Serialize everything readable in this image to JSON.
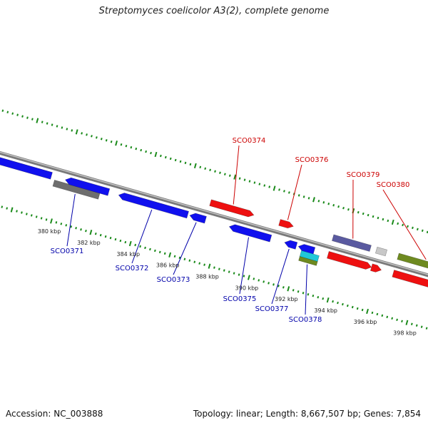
{
  "title": "Streptomyces coelicolor A3(2), complete genome",
  "accession": "Accession: NC_003888",
  "summary": "Topology: linear; Length: 8,667,507 bp; Genes: 7,854",
  "colors": {
    "backbone": "#8c8c8c",
    "tick": "#1a8a1a",
    "forward_label": "#cc0000",
    "reverse_label": "#0000aa",
    "blue_gene": "#1010ee",
    "red_gene": "#ee1010",
    "gray_gene": "#6e6e6e",
    "purple_gene": "#5a5aa0",
    "lightgray_gene": "#c8c8c8",
    "olive_gene": "#6e8a20",
    "cyan_gene": "#20c8d8"
  },
  "scale_labels": [
    {
      "text": "380 kbp",
      "kb": 380
    },
    {
      "text": "382 kbp",
      "kb": 382
    },
    {
      "text": "384 kbp",
      "kb": 384
    },
    {
      "text": "386 kbp",
      "kb": 386
    },
    {
      "text": "388 kbp",
      "kb": 388
    },
    {
      "text": "390 kbp",
      "kb": 390
    },
    {
      "text": "392 kbp",
      "kb": 392
    },
    {
      "text": "394 kbp",
      "kb": 394
    },
    {
      "text": "396 kbp",
      "kb": 396
    },
    {
      "text": "398 kbp",
      "kb": 398
    }
  ],
  "genes": [
    {
      "label": "",
      "strand": "reverse",
      "start_kb": 376.0,
      "end_kb": 379.4,
      "row": 1,
      "color": "blue_gene"
    },
    {
      "label": "SCO0371",
      "strand": "none",
      "start_kb": 379.6,
      "end_kb": 381.9,
      "row": 2,
      "color": "gray_gene"
    },
    {
      "label": "",
      "strand": "reverse",
      "start_kb": 380.1,
      "end_kb": 382.3,
      "row": 1,
      "color": "blue_gene"
    },
    {
      "label": "SCO0372",
      "strand": "reverse",
      "start_kb": 382.8,
      "end_kb": 386.3,
      "row": 1,
      "color": "blue_gene"
    },
    {
      "label": "SCO0373",
      "strand": "reverse",
      "start_kb": 386.4,
      "end_kb": 387.2,
      "row": 1,
      "color": "blue_gene"
    },
    {
      "label": "SCO0374",
      "strand": "forward",
      "start_kb": 387.2,
      "end_kb": 389.4,
      "row": 0,
      "color": "red_gene"
    },
    {
      "label": "SCO0375",
      "strand": "reverse",
      "start_kb": 388.4,
      "end_kb": 390.5,
      "row": 1,
      "color": "blue_gene"
    },
    {
      "label": "SCO0376",
      "strand": "forward",
      "start_kb": 390.7,
      "end_kb": 391.4,
      "row": 0,
      "color": "red_gene"
    },
    {
      "label": "SCO0377",
      "strand": "reverse",
      "start_kb": 391.2,
      "end_kb": 391.8,
      "row": 1,
      "color": "blue_gene"
    },
    {
      "label": "",
      "strand": "reverse",
      "start_kb": 391.9,
      "end_kb": 392.7,
      "row": 1,
      "color": "blue_gene"
    },
    {
      "label": "",
      "strand": "none",
      "start_kb": 392.1,
      "end_kb": 393.0,
      "row": 2,
      "color": "cyan_gene"
    },
    {
      "label": "SCO0378",
      "strand": "none",
      "start_kb": 392.1,
      "end_kb": 393.0,
      "row": 3,
      "color": "olive_gene"
    },
    {
      "label": "SCO0379",
      "strand": "none",
      "start_kb": 393.4,
      "end_kb": 395.3,
      "row": 0,
      "color": "purple_gene"
    },
    {
      "label": "",
      "strand": "forward",
      "start_kb": 393.4,
      "end_kb": 395.6,
      "row": 1,
      "color": "red_gene"
    },
    {
      "label": "",
      "strand": "none",
      "start_kb": 395.6,
      "end_kb": 396.1,
      "row": 0,
      "color": "lightgray_gene"
    },
    {
      "label": "",
      "strand": "forward",
      "start_kb": 395.6,
      "end_kb": 396.1,
      "row": 1,
      "color": "red_gene"
    },
    {
      "label": "SCO0380",
      "strand": "none",
      "start_kb": 396.7,
      "end_kb": 399.4,
      "row": 0,
      "color": "olive_gene"
    },
    {
      "label": "",
      "strand": "none",
      "start_kb": 399.6,
      "end_kb": 401.0,
      "row": 0,
      "color": "olive_gene"
    },
    {
      "label": "",
      "strand": "forward",
      "start_kb": 396.7,
      "end_kb": 398.9,
      "row": 1,
      "color": "red_gene"
    },
    {
      "label": "",
      "strand": "forward",
      "start_kb": 399.2,
      "end_kb": 401.0,
      "row": 1,
      "color": "red_gene"
    }
  ]
}
